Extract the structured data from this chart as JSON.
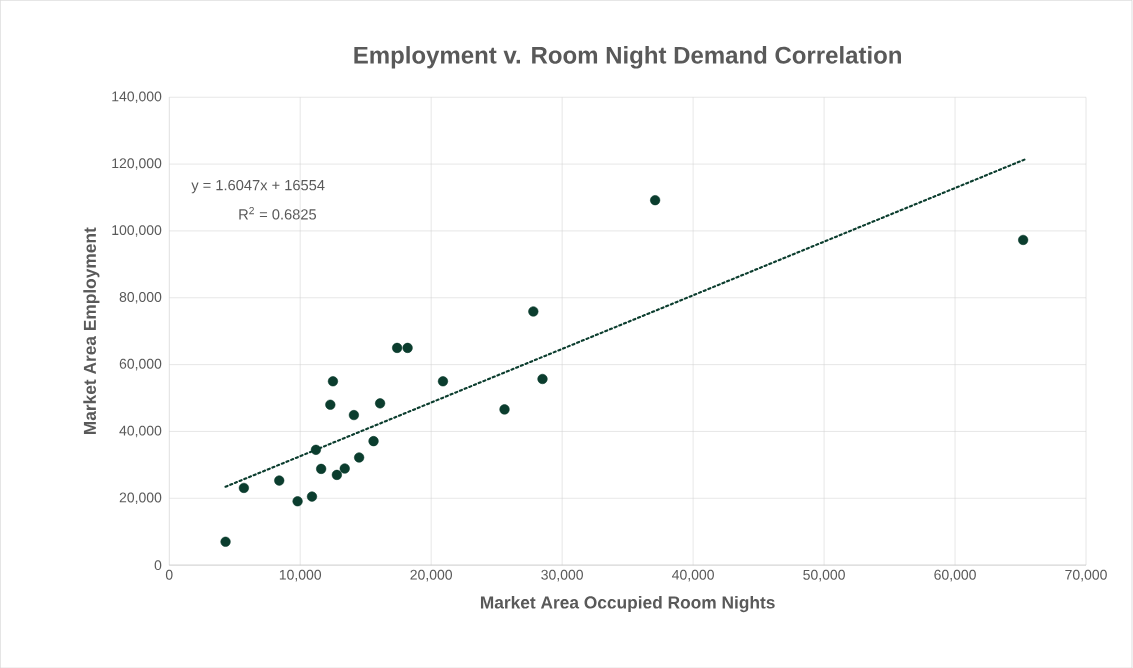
{
  "chart_data": {
    "type": "scatter",
    "title": "Employment v. Room Night Demand Correlation",
    "xlabel": "Market Area Occupied Room Nights",
    "ylabel": "Market Area Employment",
    "xlim": [
      0,
      70000
    ],
    "ylim": [
      0,
      140000
    ],
    "xticks": [
      0,
      {
        "value": 10000,
        "label": "10,000"
      },
      {
        "value": 20000,
        "label": "20,000"
      },
      {
        "value": 30000,
        "label": "30,000"
      },
      {
        "value": 40000,
        "label": "40,000"
      },
      {
        "value": 50000,
        "label": "50,000"
      },
      {
        "value": 60000,
        "label": "60,000"
      },
      {
        "value": 70000,
        "label": "70,000"
      }
    ],
    "yticks": [
      0,
      {
        "value": 20000,
        "label": "20,000"
      },
      {
        "value": 40000,
        "label": "40,000"
      },
      {
        "value": 60000,
        "label": "60,000"
      },
      {
        "value": 80000,
        "label": "80,000"
      },
      {
        "value": 100000,
        "label": "100,000"
      },
      {
        "value": 120000,
        "label": "120,000"
      },
      {
        "value": 140000,
        "label": "140,000"
      }
    ],
    "grid": true,
    "annotations": [
      "y = 1.6047x  + 16554",
      "R$^{2}$ = 0.6825"
    ],
    "series": [
      {
        "marker": "circle",
        "color": "#0b3d2e",
        "x": [
          4300,
          5700,
          8400,
          9800,
          10900,
          11200,
          11600,
          12800,
          13400,
          14500,
          15600,
          12300,
          12500,
          14100,
          16100,
          17400,
          18200,
          20900,
          25600,
          28500,
          27800,
          37100,
          65200
        ],
        "values": [
          7000,
          23100,
          25300,
          19100,
          20500,
          34500,
          28800,
          27000,
          28900,
          32200,
          37100,
          48000,
          55000,
          44900,
          48400,
          65000,
          65000,
          55000,
          46600,
          55700,
          75900,
          109200,
          97300
        ]
      },
      {
        "type": "line",
        "marker": "none",
        "line_style": "dotted",
        "color": "#0b3d2e",
        "x": [
          4300,
          65300
        ],
        "values": [
          23454,
          121341
        ]
      }
    ]
  }
}
